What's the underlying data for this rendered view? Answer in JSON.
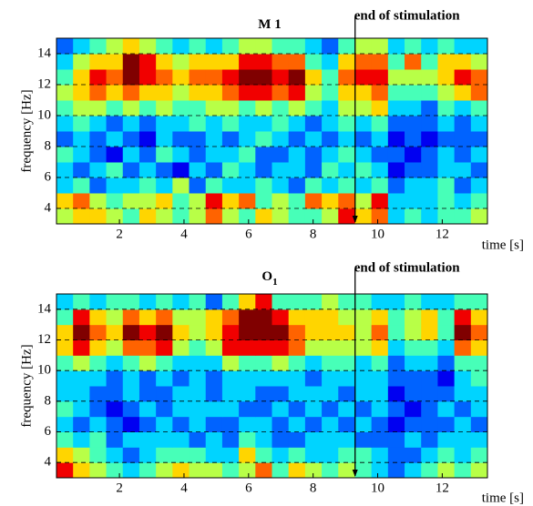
{
  "chart_data": [
    {
      "type": "heatmap",
      "title": "M 1",
      "xlabel": "time [s]",
      "ylabel": "frequency [Hz]",
      "xlim": [
        0.05,
        13.4
      ],
      "ylim": [
        3,
        15
      ],
      "xticks": [
        2,
        4,
        6,
        8,
        10,
        12
      ],
      "yticks": [
        4,
        6,
        8,
        10,
        12,
        14
      ],
      "grid": true,
      "colormap": "jet",
      "clim": [
        0,
        9
      ],
      "annotation": {
        "text": "end of stimulation",
        "x": 9.3
      },
      "z": [
        [
          5,
          6,
          6,
          5,
          4,
          6,
          5,
          4,
          5,
          7,
          5,
          4,
          6,
          5,
          4,
          4,
          5,
          8,
          6,
          7,
          3,
          4,
          3,
          4,
          4,
          5
        ],
        [
          6,
          7,
          5,
          4,
          5,
          5,
          6,
          4,
          5,
          8,
          6,
          7,
          4,
          5,
          4,
          7,
          6,
          7,
          5,
          8,
          3,
          3,
          3,
          4,
          3,
          4
        ],
        [
          3,
          4,
          2,
          3,
          3,
          4,
          3,
          5,
          2,
          4,
          3,
          3,
          4,
          3,
          2,
          4,
          3,
          4,
          3,
          4,
          2,
          3,
          3,
          4,
          2,
          3
        ],
        [
          3,
          2,
          3,
          4,
          2,
          3,
          2,
          1,
          3,
          2,
          4,
          3,
          2,
          3,
          3,
          2,
          4,
          3,
          4,
          3,
          1,
          2,
          2,
          3,
          3,
          2
        ],
        [
          4,
          3,
          2,
          1,
          3,
          2,
          4,
          3,
          2,
          3,
          3,
          4,
          2,
          2,
          3,
          2,
          3,
          4,
          3,
          2,
          2,
          1,
          2,
          3,
          2,
          3
        ],
        [
          2,
          3,
          2,
          3,
          2,
          1,
          3,
          2,
          2,
          3,
          2,
          3,
          4,
          3,
          2,
          3,
          2,
          3,
          2,
          3,
          1,
          2,
          1,
          2,
          2,
          2
        ],
        [
          3,
          4,
          3,
          2,
          3,
          2,
          3,
          3,
          4,
          3,
          4,
          3,
          3,
          4,
          3,
          2,
          3,
          4,
          3,
          4,
          2,
          2,
          2,
          3,
          2,
          3
        ],
        [
          4,
          5,
          5,
          4,
          5,
          4,
          5,
          4,
          4,
          5,
          5,
          4,
          5,
          4,
          5,
          4,
          3,
          5,
          5,
          6,
          3,
          3,
          2,
          4,
          3,
          4
        ],
        [
          5,
          6,
          7,
          6,
          7,
          6,
          6,
          5,
          6,
          6,
          7,
          8,
          8,
          7,
          8,
          5,
          4,
          6,
          6,
          7,
          4,
          4,
          4,
          5,
          6,
          7
        ],
        [
          4,
          6,
          8,
          7,
          9,
          8,
          7,
          6,
          7,
          7,
          8,
          9,
          9,
          8,
          9,
          6,
          4,
          7,
          8,
          8,
          5,
          5,
          5,
          6,
          8,
          7
        ],
        [
          3,
          5,
          6,
          6,
          9,
          8,
          6,
          5,
          6,
          6,
          6,
          8,
          8,
          7,
          7,
          4,
          3,
          6,
          7,
          7,
          4,
          7,
          4,
          6,
          6,
          5
        ],
        [
          2,
          3,
          4,
          5,
          6,
          5,
          4,
          3,
          4,
          3,
          4,
          5,
          5,
          4,
          4,
          3,
          2,
          4,
          5,
          5,
          3,
          4,
          3,
          4,
          3,
          3
        ]
      ]
    },
    {
      "type": "heatmap",
      "title": "O",
      "title_subscript": "1",
      "xlabel": "time [s]",
      "ylabel": "frequency [Hz]",
      "xlim": [
        0.05,
        13.4
      ],
      "ylim": [
        3,
        15
      ],
      "xticks": [
        2,
        4,
        6,
        8,
        10,
        12
      ],
      "yticks": [
        4,
        6,
        8,
        10,
        12,
        14
      ],
      "grid": true,
      "colormap": "jet",
      "clim": [
        0,
        9
      ],
      "annotation": {
        "text": "end of stimulation",
        "x": 9.3
      },
      "z": [
        [
          8,
          6,
          5,
          4,
          3,
          4,
          5,
          6,
          5,
          5,
          4,
          5,
          7,
          4,
          6,
          5,
          4,
          5,
          4,
          3,
          2,
          3,
          4,
          5,
          4,
          5
        ],
        [
          6,
          5,
          4,
          3,
          2,
          3,
          4,
          4,
          4,
          3,
          3,
          6,
          4,
          3,
          4,
          3,
          3,
          4,
          4,
          3,
          2,
          2,
          3,
          4,
          3,
          4
        ],
        [
          4,
          3,
          4,
          2,
          3,
          3,
          3,
          3,
          2,
          3,
          2,
          4,
          3,
          2,
          2,
          3,
          3,
          3,
          2,
          2,
          2,
          3,
          2,
          3,
          3,
          3
        ],
        [
          3,
          2,
          3,
          2,
          1,
          2,
          3,
          2,
          3,
          2,
          2,
          3,
          3,
          2,
          3,
          2,
          3,
          2,
          3,
          2,
          1,
          2,
          2,
          2,
          3,
          2
        ],
        [
          4,
          3,
          2,
          1,
          2,
          3,
          2,
          3,
          3,
          3,
          3,
          2,
          2,
          3,
          2,
          3,
          2,
          3,
          2,
          3,
          2,
          1,
          2,
          3,
          2,
          3
        ],
        [
          3,
          3,
          2,
          2,
          3,
          2,
          2,
          3,
          3,
          2,
          3,
          3,
          2,
          2,
          3,
          3,
          3,
          2,
          3,
          3,
          1,
          2,
          2,
          2,
          3,
          3
        ],
        [
          3,
          3,
          3,
          2,
          3,
          2,
          3,
          2,
          3,
          2,
          3,
          3,
          3,
          3,
          3,
          2,
          3,
          3,
          3,
          3,
          2,
          2,
          2,
          1,
          3,
          4
        ],
        [
          4,
          5,
          4,
          3,
          4,
          5,
          4,
          3,
          3,
          3,
          5,
          4,
          4,
          5,
          4,
          3,
          4,
          4,
          3,
          4,
          2,
          3,
          3,
          2,
          4,
          4
        ],
        [
          6,
          8,
          6,
          5,
          7,
          7,
          8,
          5,
          4,
          5,
          8,
          8,
          8,
          8,
          7,
          5,
          5,
          5,
          5,
          6,
          3,
          4,
          4,
          3,
          7,
          6
        ],
        [
          6,
          9,
          7,
          6,
          9,
          8,
          9,
          6,
          5,
          6,
          8,
          9,
          9,
          9,
          7,
          6,
          6,
          6,
          5,
          7,
          4,
          5,
          6,
          4,
          9,
          7
        ],
        [
          4,
          8,
          6,
          5,
          7,
          6,
          7,
          5,
          5,
          6,
          7,
          9,
          9,
          8,
          6,
          6,
          6,
          5,
          5,
          6,
          4,
          5,
          6,
          4,
          8,
          6
        ],
        [
          3,
          4,
          3,
          4,
          4,
          3,
          4,
          3,
          4,
          2,
          4,
          6,
          8,
          4,
          4,
          4,
          5,
          4,
          4,
          3,
          3,
          4,
          3,
          3,
          4,
          4
        ]
      ]
    }
  ]
}
